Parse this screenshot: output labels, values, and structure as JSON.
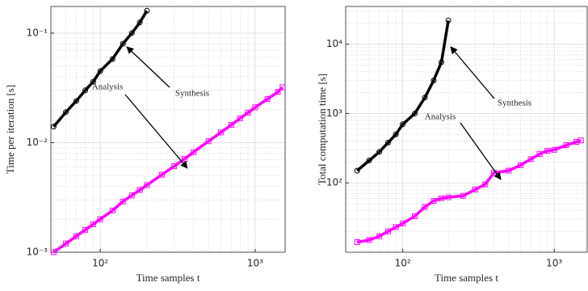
{
  "chart_data": [
    {
      "type": "scatter",
      "xlabel": "Time samples t",
      "ylabel": "Time per iteration [s]",
      "xscale": "log",
      "yscale": "log",
      "grid": true,
      "xlim": [
        48,
        1560
      ],
      "ylim": [
        0.001,
        0.175
      ],
      "xticks": [
        {
          "value": 100,
          "label": "10²"
        },
        {
          "value": 1000,
          "label": "10³"
        }
      ],
      "yticks": [
        {
          "value": 0.001,
          "label": "10⁻³"
        },
        {
          "value": 0.01,
          "label": "10⁻²"
        },
        {
          "value": 0.1,
          "label": "10⁻¹"
        }
      ],
      "xminorticks": [
        50,
        60,
        70,
        80,
        90,
        200,
        300,
        400,
        500,
        600,
        700,
        800,
        900
      ],
      "yminorticks": [
        0.002,
        0.003,
        0.004,
        0.005,
        0.006,
        0.007,
        0.008,
        0.009,
        0.02,
        0.03,
        0.04,
        0.05,
        0.06,
        0.07,
        0.08,
        0.09
      ],
      "series": [
        {
          "name": "Synthesis",
          "color": "#000000",
          "marker": "circle",
          "x": [
            50,
            60,
            70,
            80,
            90,
            100,
            120,
            140,
            160,
            180,
            200
          ],
          "values": [
            0.014,
            0.019,
            0.024,
            0.03,
            0.036,
            0.045,
            0.058,
            0.08,
            0.1,
            0.125,
            0.16
          ]
        },
        {
          "name": "Analysis",
          "color": "#ff00ff",
          "marker": "square",
          "x": [
            50,
            60,
            70,
            80,
            90,
            100,
            120,
            140,
            160,
            180,
            200,
            250,
            300,
            350,
            400,
            500,
            600,
            700,
            800,
            900,
            1000,
            1200,
            1400,
            1500
          ],
          "values": [
            0.001,
            0.0012,
            0.0014,
            0.0016,
            0.0018,
            0.002,
            0.0024,
            0.0029,
            0.0033,
            0.0037,
            0.0041,
            0.0051,
            0.0061,
            0.0071,
            0.0082,
            0.0103,
            0.0124,
            0.0145,
            0.0167,
            0.0188,
            0.021,
            0.025,
            0.029,
            0.032
          ]
        }
      ]
    },
    {
      "type": "scatter",
      "xlabel": "Time samples t",
      "ylabel": "Total computation time [s]",
      "xscale": "log",
      "yscale": "log",
      "grid": true,
      "xlim": [
        42,
        1650
      ],
      "ylim": [
        10,
        35000
      ],
      "xticks": [
        {
          "value": 100,
          "label": "10²"
        },
        {
          "value": 1000,
          "label": "10³"
        }
      ],
      "yticks": [
        {
          "value": 100,
          "label": "10²"
        },
        {
          "value": 1000,
          "label": "10³"
        },
        {
          "value": 10000,
          "label": "10⁴"
        }
      ],
      "xminorticks": [
        50,
        60,
        70,
        80,
        90,
        200,
        300,
        400,
        500,
        600,
        700,
        800,
        900
      ],
      "yminorticks": [
        20,
        30,
        40,
        50,
        60,
        70,
        80,
        90,
        200,
        300,
        400,
        500,
        600,
        700,
        800,
        900,
        2000,
        3000,
        4000,
        5000,
        6000,
        7000,
        8000,
        9000,
        20000,
        30000
      ],
      "series": [
        {
          "name": "Synthesis",
          "color": "#000000",
          "marker": "circle",
          "x": [
            50,
            60,
            70,
            80,
            90,
            100,
            120,
            140,
            160,
            180,
            200
          ],
          "values": [
            150,
            210,
            280,
            380,
            500,
            700,
            1000,
            1700,
            3000,
            5500,
            22000
          ]
        },
        {
          "name": "Analysis",
          "color": "#ff00ff",
          "marker": "square",
          "x": [
            50,
            60,
            70,
            80,
            90,
            100,
            120,
            140,
            160,
            180,
            200,
            250,
            300,
            350,
            400,
            500,
            600,
            700,
            800,
            900,
            1000,
            1200,
            1400,
            1500
          ],
          "values": [
            14,
            15,
            17,
            20,
            23,
            26,
            33,
            45,
            55,
            60,
            62,
            65,
            80,
            95,
            140,
            150,
            180,
            220,
            260,
            290,
            300,
            350,
            390,
            410
          ]
        }
      ]
    }
  ]
}
